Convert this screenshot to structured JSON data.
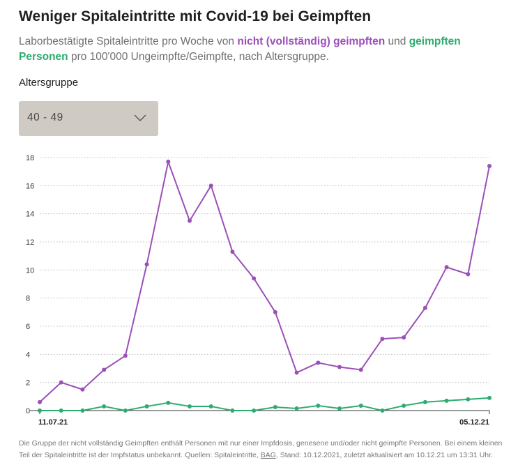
{
  "header": {
    "title": "Weniger Spitaleintritte mit Covid-19 bei Geimpften",
    "subtitle_part1": "Laborbestätigte Spitaleintritte pro Woche von ",
    "subtitle_highlight_unvaccinated": "nicht (vollständig) geimpften",
    "subtitle_part2": " und ",
    "subtitle_highlight_vaccinated": "geimpften Personen",
    "subtitle_part3": " pro 100'000 Ungeimpfte/Geimpfte, nach Altersgruppe."
  },
  "filter": {
    "label": "Altersgruppe",
    "selected": "40 - 49"
  },
  "colors": {
    "unvaccinated": "#9b4fb8",
    "vaccinated": "#2cac6e",
    "grid": "#bdbdbd"
  },
  "footnote": {
    "text1": "Die Gruppe der nicht vollständig Geimpften enthält Personen mit nur einer Impfdosis, genesene und/oder nicht geimpfte Personen. Bei einem kleinen Teil der Spitaleintritte ist der Impfstatus unbekannt. Quellen: Spitaleintritte, ",
    "link": "BAG",
    "text2": ", Stand: 10.12.2021, zuletzt aktualisiert am 10.12.21 um 13:31 Uhr."
  },
  "chart_data": {
    "type": "line",
    "title": "Weniger Spitaleintritte mit Covid-19 bei Geimpften",
    "xlabel": "",
    "ylabel": "",
    "ylim": [
      0,
      18
    ],
    "yticks": [
      0,
      2,
      4,
      6,
      8,
      10,
      12,
      14,
      16,
      18
    ],
    "x_tick_labels": [
      {
        "index": 0,
        "label": "11.07.21"
      },
      {
        "index": 21,
        "label": "05.12.21"
      }
    ],
    "grid": true,
    "series": [
      {
        "name": "nicht (vollständig) geimpft",
        "color": "#9b4fb8",
        "values": [
          0.6,
          2.0,
          1.5,
          2.9,
          3.9,
          10.4,
          17.7,
          13.5,
          16.0,
          11.3,
          9.4,
          7.0,
          2.7,
          3.4,
          3.1,
          2.9,
          5.1,
          5.2,
          7.3,
          10.2,
          9.7,
          17.4
        ]
      },
      {
        "name": "geimpft",
        "color": "#2cac6e",
        "values": [
          0.0,
          0.0,
          0.0,
          0.3,
          0.0,
          0.3,
          0.55,
          0.3,
          0.3,
          0.0,
          0.0,
          0.25,
          0.15,
          0.35,
          0.15,
          0.35,
          0.0,
          0.35,
          0.6,
          0.7,
          0.8,
          0.9
        ]
      }
    ]
  }
}
